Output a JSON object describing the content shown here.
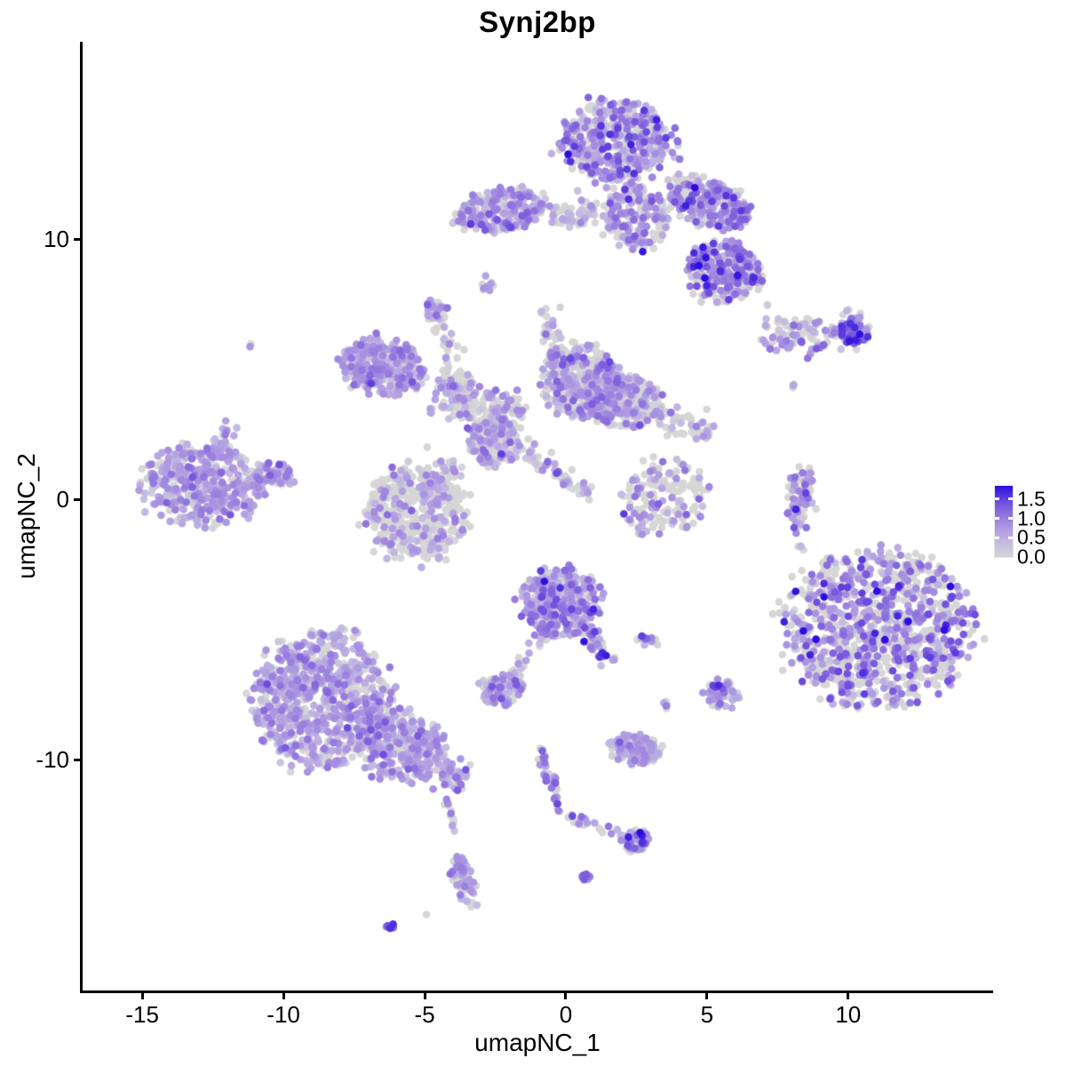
{
  "page": {
    "background": "#ffffff",
    "text_color": "#000000",
    "axis_color": "#000000"
  },
  "chart_data": {
    "type": "scatter",
    "title": "Synj2bp",
    "xlabel": "umapNC_1",
    "ylabel": "umapNC_2",
    "x_ticks": [
      -15,
      -10,
      -5,
      0,
      5,
      10
    ],
    "y_ticks": [
      10,
      0,
      -10
    ],
    "xlim": [
      -17.05,
      15.04
    ],
    "ylim": [
      -18.84,
      17.61
    ],
    "grid": false,
    "point_radius_px": 4.3,
    "seed": 7,
    "colorscale": {
      "low": "#D6D6D6",
      "high": "#2B0BDF",
      "ramp": [
        "#D6D6D6",
        "#BFB4E3",
        "#A188DF",
        "#7454DD",
        "#2B0BDF"
      ]
    },
    "legend": {
      "position": "right",
      "labels": [
        "1.5",
        "1.0",
        "0.5",
        "0.0"
      ],
      "values": [
        1.5,
        1.0,
        0.5,
        0.0
      ],
      "tick_values": [
        1.5,
        1.0,
        0.5
      ],
      "min": 0,
      "max": 1.84
    },
    "clusters": [
      {
        "name": "top-main",
        "kind": "blob",
        "x": 1.8,
        "y": 13.8,
        "rx": 1.95,
        "ry": 1.6,
        "rot": 0,
        "n": 430,
        "grey": 0.32,
        "mean": 0.8,
        "sd": 0.4
      },
      {
        "name": "top-main-neck",
        "kind": "blob",
        "x": 2.5,
        "y": 10.9,
        "rx": 1.15,
        "ry": 1.25,
        "rot": 0,
        "n": 190,
        "grey": 0.42,
        "mean": 0.7,
        "sd": 0.35
      },
      {
        "name": "top-right-wing",
        "kind": "blob",
        "x": 5.1,
        "y": 11.4,
        "rx": 1.55,
        "ry": 0.9,
        "rot": -25,
        "n": 270,
        "grey": 0.3,
        "mean": 0.75,
        "sd": 0.4
      },
      {
        "name": "top-right-lobe",
        "kind": "blob",
        "x": 5.6,
        "y": 8.8,
        "rx": 1.3,
        "ry": 1.15,
        "rot": 0,
        "n": 260,
        "grey": 0.35,
        "mean": 0.8,
        "sd": 0.45
      },
      {
        "name": "top-left-wing",
        "kind": "blob",
        "x": -2.3,
        "y": 11.1,
        "rx": 1.55,
        "ry": 0.8,
        "rot": 10,
        "n": 240,
        "grey": 0.3,
        "mean": 0.65,
        "sd": 0.35
      },
      {
        "name": "wing-bridge",
        "kind": "strip",
        "x1": -0.6,
        "y1": 10.8,
        "x2": 1.2,
        "y2": 11.2,
        "w": 0.25,
        "n": 50,
        "grey": 0.5,
        "mean": 0.5,
        "sd": 0.3
      },
      {
        "name": "tiny-below-wing",
        "kind": "blob",
        "x": -2.8,
        "y": 8.3,
        "rx": 0.25,
        "ry": 0.32,
        "rot": 0,
        "n": 11,
        "grey": 0.35,
        "mean": 0.7,
        "sd": 0.3
      },
      {
        "name": "right-band",
        "kind": "strip",
        "x1": 7.0,
        "y1": 6.35,
        "x2": 10.6,
        "y2": 6.6,
        "w": 0.35,
        "n": 110,
        "grey": 0.32,
        "mean": 0.6,
        "sd": 0.35
      },
      {
        "name": "right-band-tip",
        "kind": "blob",
        "x": 10.2,
        "y": 6.5,
        "rx": 0.55,
        "ry": 0.45,
        "rot": 0,
        "n": 65,
        "grey": 0.2,
        "mean": 1.05,
        "sd": 0.35
      },
      {
        "name": "right-band-streak",
        "kind": "strip",
        "x1": 8.4,
        "y1": 5.5,
        "x2": 9.1,
        "y2": 6.0,
        "w": 0.1,
        "n": 9,
        "grey": 0.2,
        "mean": 0.7,
        "sd": 0.3
      },
      {
        "name": "right-band-dots",
        "kind": "blob",
        "x": 8.05,
        "y": 4.5,
        "rx": 0.18,
        "ry": 0.25,
        "rot": 0,
        "n": 3,
        "grey": 0.7,
        "mean": 0.4,
        "sd": 0.2
      },
      {
        "name": "mid-left-lobe",
        "kind": "blob",
        "x": -6.5,
        "y": 5.1,
        "rx": 1.5,
        "ry": 1.05,
        "rot": -15,
        "n": 310,
        "grey": 0.25,
        "mean": 0.6,
        "sd": 0.3
      },
      {
        "name": "mid-band",
        "kind": "strip",
        "x1": -4.6,
        "y1": 4.2,
        "x2": -1.5,
        "y2": 3.2,
        "w": 0.45,
        "n": 170,
        "grey": 0.5,
        "mean": 0.5,
        "sd": 0.3
      },
      {
        "name": "mid-upper-lobe",
        "kind": "blob",
        "x": 0.55,
        "y": 4.55,
        "rx": 1.4,
        "ry": 1.35,
        "rot": 0,
        "n": 350,
        "grey": 0.45,
        "mean": 0.6,
        "sd": 0.35
      },
      {
        "name": "mid-spike",
        "kind": "strip",
        "x1": -0.8,
        "y1": 7.3,
        "x2": -0.2,
        "y2": 5.1,
        "w": 0.18,
        "n": 35,
        "grey": 0.5,
        "mean": 0.5,
        "sd": 0.3
      },
      {
        "name": "mid-top-blob",
        "kind": "blob",
        "x": -4.6,
        "y": 7.3,
        "rx": 0.38,
        "ry": 0.42,
        "rot": 0,
        "n": 30,
        "grey": 0.3,
        "mean": 0.6,
        "sd": 0.3
      },
      {
        "name": "mid-top-trail",
        "kind": "strip",
        "x1": -4.5,
        "y1": 6.9,
        "x2": -3.5,
        "y2": 3.4,
        "w": 0.2,
        "n": 45,
        "grey": 0.7,
        "mean": 0.4,
        "sd": 0.25
      },
      {
        "name": "mid-right-lobe",
        "kind": "blob",
        "x": 2.0,
        "y": 3.85,
        "rx": 1.35,
        "ry": 1.0,
        "rot": -10,
        "n": 290,
        "grey": 0.4,
        "mean": 0.6,
        "sd": 0.35
      },
      {
        "name": "mid-right-tail",
        "kind": "strip",
        "x1": 3.4,
        "y1": 3.35,
        "x2": 5.1,
        "y2": 2.5,
        "w": 0.3,
        "n": 50,
        "grey": 0.55,
        "mean": 0.5,
        "sd": 0.3
      },
      {
        "name": "mid-node",
        "kind": "blob",
        "x": -2.6,
        "y": 2.3,
        "rx": 0.85,
        "ry": 0.95,
        "rot": 0,
        "n": 170,
        "grey": 0.5,
        "mean": 0.55,
        "sd": 0.3
      },
      {
        "name": "mid-diag-streak",
        "kind": "strip",
        "x1": -1.6,
        "y1": 2.0,
        "x2": 0.9,
        "y2": 0.1,
        "w": 0.15,
        "n": 55,
        "grey": 0.45,
        "mean": 0.6,
        "sd": 0.3
      },
      {
        "name": "node-round-bridge",
        "kind": "strip",
        "x1": -4.0,
        "y1": 1.5,
        "x2": -4.9,
        "y2": 0.1,
        "w": 0.3,
        "n": 70,
        "grey": 0.6,
        "mean": 0.5,
        "sd": 0.3
      },
      {
        "name": "far-left-main",
        "kind": "blob",
        "x": -12.8,
        "y": 0.6,
        "rx": 2.1,
        "ry": 1.5,
        "rot": 0,
        "n": 390,
        "grey": 0.18,
        "mean": 0.6,
        "sd": 0.3
      },
      {
        "name": "far-left-point",
        "kind": "blob",
        "x": -10.3,
        "y": 0.95,
        "rx": 0.7,
        "ry": 0.45,
        "rot": 0,
        "n": 70,
        "grey": 0.25,
        "mean": 0.6,
        "sd": 0.3
      },
      {
        "name": "far-left-spike",
        "kind": "strip",
        "x1": -11.8,
        "y1": 2.9,
        "x2": -12.5,
        "y2": 1.7,
        "w": 0.15,
        "n": 22,
        "grey": 0.3,
        "mean": 0.6,
        "sd": 0.3
      },
      {
        "name": "left-dot-pair",
        "kind": "blob",
        "x": -11.1,
        "y": 5.9,
        "rx": 0.12,
        "ry": 0.12,
        "rot": 0,
        "n": 2,
        "grey": 0.5,
        "mean": 0.8,
        "sd": 0.2
      },
      {
        "name": "grey-round",
        "kind": "blob",
        "x": -5.3,
        "y": -0.5,
        "rx": 1.8,
        "ry": 1.7,
        "rot": 0,
        "n": 440,
        "grey": 0.68,
        "mean": 0.55,
        "sd": 0.3
      },
      {
        "name": "sparse-u",
        "kind": "blob",
        "x": 3.45,
        "y": 0.1,
        "rx": 1.5,
        "ry": 1.5,
        "rot": 0,
        "n": 150,
        "grey": 0.68,
        "mean": 0.7,
        "sd": 0.35
      },
      {
        "name": "right-strip-a",
        "kind": "strip",
        "x1": 8.2,
        "y1": -1.2,
        "x2": 8.05,
        "y2": 1.05,
        "w": 0.12,
        "n": 45,
        "grey": 0.5,
        "mean": 0.8,
        "sd": 0.4
      },
      {
        "name": "right-strip-b",
        "kind": "strip",
        "x1": 8.65,
        "y1": -0.4,
        "x2": 8.5,
        "y2": 1.2,
        "w": 0.12,
        "n": 35,
        "grey": 0.5,
        "mean": 0.8,
        "sd": 0.4
      },
      {
        "name": "right-strip-dots",
        "kind": "blob",
        "x": 8.3,
        "y": -1.85,
        "rx": 0.15,
        "ry": 0.15,
        "rot": 0,
        "n": 3,
        "grey": 0.7,
        "mean": 0.4,
        "sd": 0.2
      },
      {
        "name": "big-right",
        "kind": "blob",
        "x": 11.1,
        "y": -4.95,
        "rx": 3.15,
        "ry": 2.9,
        "rot": 10,
        "n": 920,
        "grey": 0.45,
        "mean": 0.85,
        "sd": 0.45
      },
      {
        "name": "big-right-trail",
        "kind": "strip",
        "x1": 7.5,
        "y1": -4.7,
        "x2": 9.5,
        "y2": -2.3,
        "w": 0.3,
        "n": 25,
        "grey": 0.85,
        "mean": 0.3,
        "sd": 0.2
      },
      {
        "name": "center-dense",
        "kind": "blob",
        "x": -0.15,
        "y": -3.9,
        "rx": 1.35,
        "ry": 1.3,
        "rot": 0,
        "n": 310,
        "grey": 0.18,
        "mean": 0.7,
        "sd": 0.35
      },
      {
        "name": "center-streak",
        "kind": "strip",
        "x1": 0.55,
        "y1": -4.7,
        "x2": 1.6,
        "y2": -6.3,
        "w": 0.16,
        "n": 45,
        "grey": 0.25,
        "mean": 0.8,
        "sd": 0.45
      },
      {
        "name": "center-trail",
        "kind": "strip",
        "x1": -0.8,
        "y1": -5.1,
        "x2": -2.0,
        "y2": -6.9,
        "w": 0.12,
        "n": 28,
        "grey": 0.5,
        "mean": 0.5,
        "sd": 0.3
      },
      {
        "name": "center-small",
        "kind": "blob",
        "x": -2.3,
        "y": -7.3,
        "rx": 0.78,
        "ry": 0.6,
        "rot": 0,
        "n": 100,
        "grey": 0.3,
        "mean": 0.6,
        "sd": 0.3
      },
      {
        "name": "pair-dots",
        "kind": "strip",
        "x1": 2.55,
        "y1": -5.3,
        "x2": 3.3,
        "y2": -5.45,
        "w": 0.1,
        "n": 12,
        "grey": 0.35,
        "mean": 0.85,
        "sd": 0.5
      },
      {
        "name": "below-pair-dots",
        "kind": "blob",
        "x": 3.55,
        "y": -7.85,
        "rx": 0.13,
        "ry": 0.16,
        "rot": 0,
        "n": 5,
        "grey": 0.4,
        "mean": 0.9,
        "sd": 0.3
      },
      {
        "name": "dark-crescent",
        "kind": "blob",
        "x": 5.5,
        "y": -7.45,
        "rx": 0.55,
        "ry": 0.6,
        "rot": 0,
        "n": 48,
        "grey": 0.12,
        "mean": 0.7,
        "sd": 0.3
      },
      {
        "name": "dark-crescent-core",
        "kind": "blob",
        "x": 5.3,
        "y": -7.15,
        "rx": 0.12,
        "ry": 0.12,
        "rot": 0,
        "n": 3,
        "grey": 0,
        "mean": 1.55,
        "sd": 0.1
      },
      {
        "name": "small-oval",
        "kind": "blob",
        "x": 2.5,
        "y": -9.6,
        "rx": 0.88,
        "ry": 0.55,
        "rot": -10,
        "n": 145,
        "grey": 0.3,
        "mean": 0.55,
        "sd": 0.25
      },
      {
        "name": "y-trail-stem",
        "kind": "strip",
        "x1": -0.95,
        "y1": -9.55,
        "x2": -0.15,
        "y2": -12.1,
        "w": 0.1,
        "n": 40,
        "grey": 0.4,
        "mean": 0.7,
        "sd": 0.4
      },
      {
        "name": "y-trail-branch",
        "kind": "strip",
        "x1": -0.05,
        "y1": -12.1,
        "x2": 2.05,
        "y2": -12.95,
        "w": 0.08,
        "n": 22,
        "grey": 0.5,
        "mean": 0.6,
        "sd": 0.3
      },
      {
        "name": "y-trail-end",
        "kind": "blob",
        "x": 2.5,
        "y": -13.05,
        "rx": 0.5,
        "ry": 0.45,
        "rot": 0,
        "n": 52,
        "grey": 0.35,
        "mean": 0.75,
        "sd": 0.4
      },
      {
        "name": "dark-dot-compact",
        "kind": "blob",
        "x": 0.65,
        "y": -14.45,
        "rx": 0.17,
        "ry": 0.15,
        "rot": 0,
        "n": 9,
        "grey": 0.05,
        "mean": 1.05,
        "sd": 0.25
      },
      {
        "name": "bottom-left-main",
        "kind": "blob",
        "x": -8.65,
        "y": -7.7,
        "rx": 2.35,
        "ry": 2.55,
        "rot": 0,
        "n": 740,
        "grey": 0.25,
        "mean": 0.6,
        "sd": 0.28
      },
      {
        "name": "bottom-left-lobe",
        "kind": "blob",
        "x": -5.8,
        "y": -9.5,
        "rx": 1.6,
        "ry": 1.25,
        "rot": -20,
        "n": 340,
        "grey": 0.3,
        "mean": 0.6,
        "sd": 0.3
      },
      {
        "name": "bottom-left-tail",
        "kind": "strip",
        "x1": -4.5,
        "y1": -10.4,
        "x2": -3.65,
        "y2": -10.9,
        "w": 0.25,
        "n": 60,
        "grey": 0.35,
        "mean": 0.6,
        "sd": 0.3
      },
      {
        "name": "drip-dots",
        "kind": "strip",
        "x1": -4.3,
        "y1": -11.6,
        "x2": -3.8,
        "y2": -13.2,
        "w": 0.1,
        "n": 10,
        "grey": 0.5,
        "mean": 0.6,
        "sd": 0.3
      },
      {
        "name": "drip-crescent",
        "kind": "blob",
        "x": -3.6,
        "y": -14.65,
        "rx": 0.42,
        "ry": 1.0,
        "rot": 15,
        "n": 68,
        "grey": 0.35,
        "mean": 0.6,
        "sd": 0.3
      },
      {
        "name": "lone-grey-dot",
        "kind": "blob",
        "x": -4.95,
        "y": -15.9,
        "rx": 0.05,
        "ry": 0.05,
        "rot": 0,
        "n": 1,
        "grey": 1,
        "mean": 0,
        "sd": 0
      },
      {
        "name": "dark-mini",
        "kind": "blob",
        "x": -6.25,
        "y": -16.4,
        "rx": 0.2,
        "ry": 0.1,
        "rot": 20,
        "n": 7,
        "grey": 0.1,
        "mean": 1.3,
        "sd": 0.25
      }
    ]
  }
}
